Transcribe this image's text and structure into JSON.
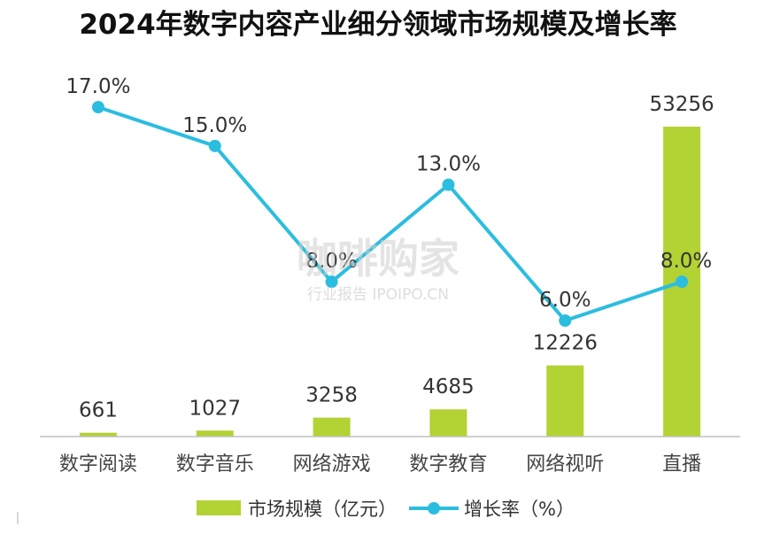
{
  "chart_data": {
    "type": "bar",
    "title": "2024年数字内容产业细分领域市场规模及增长率",
    "categories": [
      "数字阅读",
      "数字音乐",
      "网络游戏",
      "数字教育",
      "网络视听",
      "直播"
    ],
    "series": [
      {
        "name": "市场规模（亿元）",
        "type": "bar",
        "values": [
          661,
          1027,
          3258,
          4685,
          12226,
          53256
        ],
        "labels": [
          "661",
          "1027",
          "3258",
          "4685",
          "12226",
          "53256"
        ]
      },
      {
        "name": "增长率（%）",
        "type": "line",
        "values": [
          17.0,
          15.0,
          8.0,
          13.0,
          6.0,
          8.0
        ],
        "labels": [
          "17.0%",
          "15.0%",
          "8.0%",
          "13.0%",
          "6.0%",
          "8.0%"
        ]
      }
    ],
    "bar_ylim": [
      0,
      56000
    ],
    "line_ylim": [
      0,
      21
    ],
    "grid": false,
    "legend_position": "bottom"
  },
  "watermark": {
    "main": "咖啡购家",
    "sub": "行业报告 IPOIPO.CN"
  },
  "colors": {
    "bar": "#b3d234",
    "line": "#2bbde0",
    "axis": "#bfbfbf",
    "title": "#111111"
  }
}
